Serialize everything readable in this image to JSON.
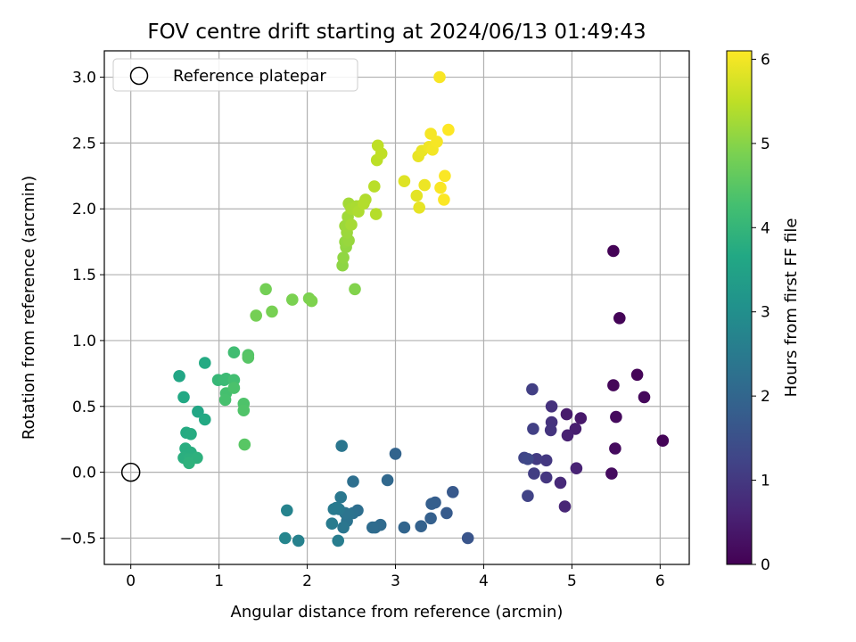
{
  "chart_data": {
    "type": "scatter",
    "title": "FOV centre drift starting at 2024/06/13 01:49:43",
    "xlabel": "Angular distance from reference (arcmin)",
    "ylabel": "Rotation from reference (arcmin)",
    "xlim": [
      -0.3,
      6.33
    ],
    "ylim": [
      -0.7,
      3.2
    ],
    "x_ticks": [
      0,
      1,
      2,
      3,
      4,
      5,
      6
    ],
    "x_tick_labels": [
      "0",
      "1",
      "2",
      "3",
      "4",
      "5",
      "6"
    ],
    "y_ticks": [
      -0.5,
      0.0,
      0.5,
      1.0,
      1.5,
      2.0,
      2.5,
      3.0
    ],
    "y_tick_labels": [
      "−0.5",
      "0.0",
      "0.5",
      "1.0",
      "1.5",
      "2.0",
      "2.5",
      "3.0"
    ],
    "grid": true,
    "legend": {
      "position": "top-left",
      "entries": [
        "Reference platepar"
      ]
    },
    "reference_point": {
      "label": "Reference platepar",
      "x": 0,
      "y": 0
    },
    "colorbar": {
      "label": "Hours from first FF file",
      "colormap": "viridis",
      "range": [
        0,
        6.1
      ],
      "ticks": [
        0,
        1,
        2,
        3,
        4,
        5,
        6
      ],
      "tick_labels": [
        "0",
        "1",
        "2",
        "3",
        "4",
        "5",
        "6"
      ]
    },
    "points": [
      [
        5.47,
        1.68,
        0.03
      ],
      [
        5.54,
        1.17,
        0.06
      ],
      [
        5.74,
        0.74,
        0.08
      ],
      [
        5.47,
        0.66,
        0.1
      ],
      [
        5.82,
        0.57,
        0.13
      ],
      [
        5.5,
        0.42,
        0.16
      ],
      [
        6.03,
        0.24,
        0.05
      ],
      [
        5.49,
        0.18,
        0.18
      ],
      [
        5.45,
        -0.01,
        0.2
      ],
      [
        5.1,
        0.41,
        0.4
      ],
      [
        4.94,
        0.44,
        0.45
      ],
      [
        5.04,
        0.33,
        0.5
      ],
      [
        4.95,
        0.28,
        0.55
      ],
      [
        5.05,
        0.03,
        0.6
      ],
      [
        4.92,
        -0.26,
        0.65
      ],
      [
        4.87,
        -0.08,
        0.7
      ],
      [
        4.77,
        0.5,
        0.85
      ],
      [
        4.77,
        0.38,
        0.88
      ],
      [
        4.76,
        0.32,
        0.92
      ],
      [
        4.71,
        -0.04,
        0.95
      ],
      [
        4.71,
        0.09,
        1.0
      ],
      [
        4.6,
        0.1,
        1.05
      ],
      [
        4.57,
        -0.01,
        1.1
      ],
      [
        4.55,
        0.63,
        1.12
      ],
      [
        4.56,
        0.33,
        1.15
      ],
      [
        4.5,
        -0.18,
        1.2
      ],
      [
        4.46,
        0.11,
        1.25
      ],
      [
        4.5,
        0.1,
        1.3
      ],
      [
        3.82,
        -0.5,
        1.6
      ],
      [
        3.65,
        -0.15,
        1.7
      ],
      [
        3.58,
        -0.31,
        1.75
      ],
      [
        3.45,
        -0.23,
        1.8
      ],
      [
        3.41,
        -0.24,
        1.82
      ],
      [
        3.4,
        -0.35,
        1.85
      ],
      [
        3.29,
        -0.41,
        1.9
      ],
      [
        3.0,
        0.14,
        1.95
      ],
      [
        3.1,
        -0.42,
        1.98
      ],
      [
        2.91,
        -0.06,
        2.05
      ],
      [
        2.83,
        -0.4,
        2.1
      ],
      [
        2.77,
        -0.42,
        2.12
      ],
      [
        2.74,
        -0.42,
        2.15
      ],
      [
        2.57,
        -0.29,
        2.2
      ],
      [
        2.52,
        -0.07,
        2.22
      ],
      [
        2.52,
        -0.31,
        2.25
      ],
      [
        2.47,
        -0.32,
        2.3
      ],
      [
        2.45,
        -0.37,
        2.33
      ],
      [
        2.43,
        -0.31,
        2.35
      ],
      [
        2.41,
        -0.42,
        2.38
      ],
      [
        2.39,
        0.2,
        2.4
      ],
      [
        2.38,
        -0.19,
        2.42
      ],
      [
        2.36,
        -0.28,
        2.45
      ],
      [
        2.33,
        -0.27,
        2.48
      ],
      [
        2.3,
        -0.28,
        2.5
      ],
      [
        2.28,
        -0.39,
        2.52
      ],
      [
        2.35,
        -0.52,
        2.55
      ],
      [
        1.9,
        -0.52,
        2.65
      ],
      [
        1.77,
        -0.29,
        2.7
      ],
      [
        1.75,
        -0.5,
        2.75
      ],
      [
        0.55,
        0.73,
        3.6
      ],
      [
        0.6,
        0.57,
        3.65
      ],
      [
        0.84,
        0.83,
        3.7
      ],
      [
        0.76,
        0.46,
        3.62
      ],
      [
        0.84,
        0.4,
        3.68
      ],
      [
        0.63,
        0.3,
        3.72
      ],
      [
        0.68,
        0.29,
        3.75
      ],
      [
        0.62,
        0.18,
        3.78
      ],
      [
        0.68,
        0.15,
        3.8
      ],
      [
        0.6,
        0.11,
        3.82
      ],
      [
        0.66,
        0.1,
        3.85
      ],
      [
        0.75,
        0.11,
        3.88
      ],
      [
        0.66,
        0.07,
        3.9
      ],
      [
        0.99,
        0.7,
        4.05
      ],
      [
        1.06,
        0.7,
        4.1
      ],
      [
        1.08,
        0.71,
        4.15
      ],
      [
        1.17,
        0.91,
        4.2
      ],
      [
        1.17,
        0.7,
        4.25
      ],
      [
        1.08,
        0.6,
        4.28
      ],
      [
        1.07,
        0.55,
        4.3
      ],
      [
        1.17,
        0.64,
        4.35
      ],
      [
        1.28,
        0.52,
        4.38
      ],
      [
        1.28,
        0.47,
        4.4
      ],
      [
        1.33,
        0.89,
        4.45
      ],
      [
        1.33,
        0.87,
        4.48
      ],
      [
        1.29,
        0.21,
        4.5
      ],
      [
        1.53,
        1.39,
        4.8
      ],
      [
        1.42,
        1.19,
        4.82
      ],
      [
        1.6,
        1.22,
        4.85
      ],
      [
        1.83,
        1.31,
        4.88
      ],
      [
        2.02,
        1.32,
        4.9
      ],
      [
        2.05,
        1.3,
        4.92
      ],
      [
        2.54,
        1.39,
        4.95
      ],
      [
        2.4,
        1.57,
        5.05
      ],
      [
        2.41,
        1.63,
        5.08
      ],
      [
        2.44,
        1.71,
        5.1
      ],
      [
        2.43,
        1.75,
        5.12
      ],
      [
        2.47,
        1.76,
        5.15
      ],
      [
        2.45,
        1.82,
        5.18
      ],
      [
        2.43,
        1.87,
        5.2
      ],
      [
        2.46,
        1.94,
        5.22
      ],
      [
        2.47,
        2.04,
        5.25
      ],
      [
        2.5,
        1.88,
        5.28
      ],
      [
        2.5,
        2.0,
        5.3
      ],
      [
        2.56,
        2.02,
        5.32
      ],
      [
        2.58,
        1.98,
        5.35
      ],
      [
        2.66,
        2.07,
        5.38
      ],
      [
        2.64,
        2.04,
        5.4
      ],
      [
        2.78,
        1.96,
        5.42
      ],
      [
        2.76,
        2.17,
        5.45
      ],
      [
        2.79,
        2.37,
        5.48
      ],
      [
        2.8,
        2.48,
        5.5
      ],
      [
        2.84,
        2.42,
        5.52
      ],
      [
        3.1,
        2.21,
        5.8
      ],
      [
        3.24,
        2.1,
        5.85
      ],
      [
        3.27,
        2.01,
        5.88
      ],
      [
        3.26,
        2.4,
        5.9
      ],
      [
        3.3,
        2.44,
        5.92
      ],
      [
        3.33,
        2.18,
        5.95
      ],
      [
        3.38,
        2.47,
        5.98
      ],
      [
        3.42,
        2.45,
        6.0
      ],
      [
        3.4,
        2.57,
        6.02
      ],
      [
        3.47,
        2.51,
        6.03
      ],
      [
        3.5,
        3.0,
        6.05
      ],
      [
        3.51,
        2.16,
        6.06
      ],
      [
        3.56,
        2.25,
        6.07
      ],
      [
        3.55,
        2.07,
        6.08
      ],
      [
        3.6,
        2.6,
        6.1
      ]
    ]
  }
}
